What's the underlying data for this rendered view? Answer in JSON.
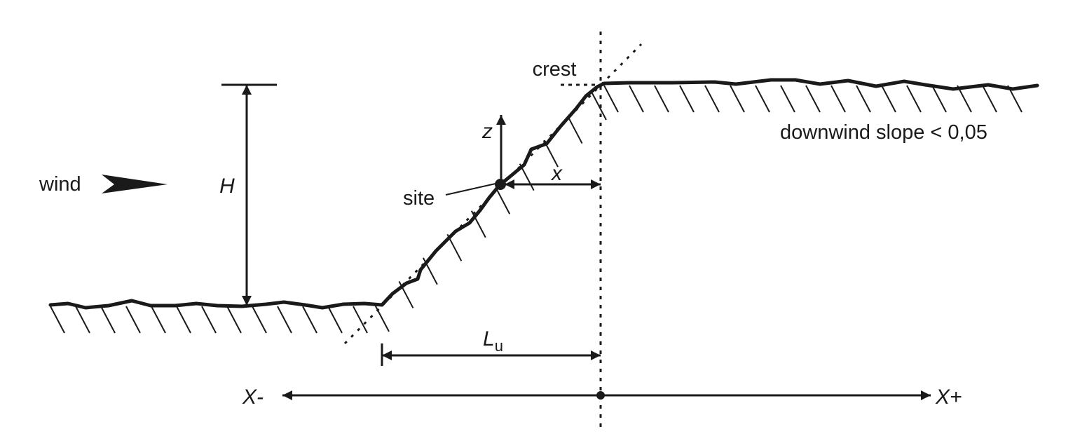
{
  "labels": {
    "crest": "crest",
    "downwind_slope": "downwind slope < 0,05",
    "wind": "wind",
    "height": "H",
    "z_axis": "z",
    "x_axis": "x",
    "site": "site",
    "length_main": "L",
    "length_sub": "u",
    "x_minus": "X-",
    "x_plus": "X+"
  },
  "colors": {
    "ink": "#1a1a1a",
    "background": "#ffffff"
  }
}
